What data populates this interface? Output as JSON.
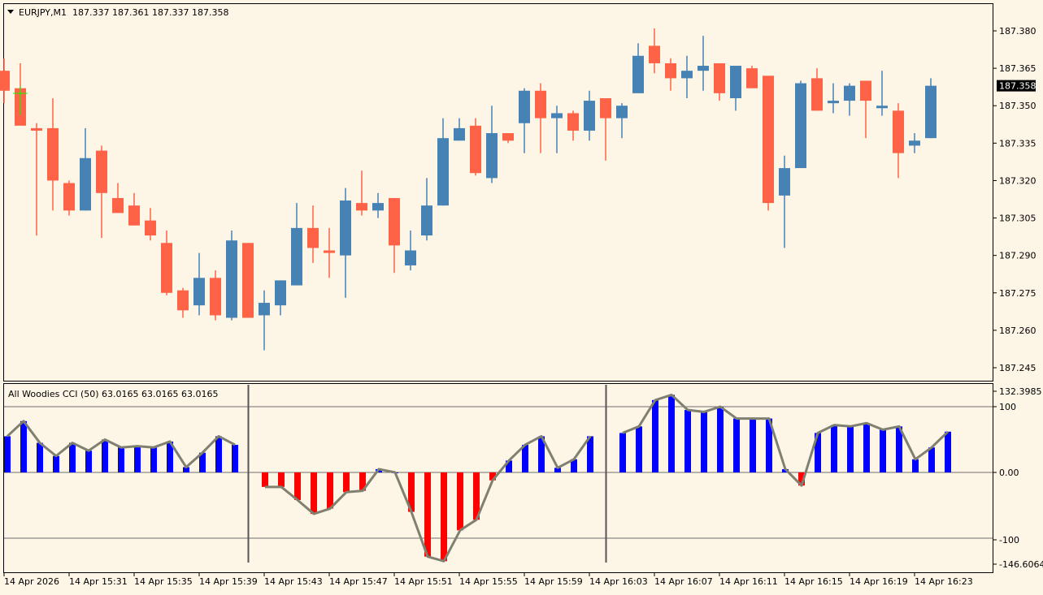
{
  "main": {
    "header": {
      "symbol": "EURJPY,M1",
      "ohlc": "187.337 187.361 187.337 187.358"
    },
    "current_price": "187.358",
    "price_axis": [
      "187.380",
      "187.365",
      "187.350",
      "187.335",
      "187.320",
      "187.305",
      "187.290",
      "187.275",
      "187.260",
      "187.245"
    ]
  },
  "indicator": {
    "header": "All Woodies CCI (50) 63.0165 63.0165 63.0165",
    "axis": [
      "132.3985",
      "100",
      "0.00",
      "-100",
      "-146.6064"
    ]
  },
  "time_axis": [
    "14 Apr 2026",
    "14 Apr 15:31",
    "14 Apr 15:35",
    "14 Apr 15:39",
    "14 Apr 15:43",
    "14 Apr 15:47",
    "14 Apr 15:51",
    "14 Apr 15:55",
    "14 Apr 15:59",
    "14 Apr 16:03",
    "14 Apr 16:07",
    "14 Apr 16:11",
    "14 Apr 16:15",
    "14 Apr 16:19",
    "14 Apr 16:23"
  ],
  "colors": {
    "background": "#fdf5e6",
    "bull": "#4682b4",
    "bear": "#ff6347",
    "cci_positive": "#0000ff",
    "cci_negative": "#ff0000",
    "cci_line": "#808070",
    "crosshair": "#00ff00"
  },
  "chart_data": [
    {
      "type": "candlestick",
      "title": "EURJPY,M1",
      "ylim": [
        187.24,
        187.385
      ],
      "candles": [
        {
          "o": 187.364,
          "h": 187.369,
          "l": 187.351,
          "c": 187.356
        },
        {
          "o": 187.357,
          "h": 187.367,
          "l": 187.342,
          "c": 187.342
        },
        {
          "o": 187.341,
          "h": 187.343,
          "l": 187.298,
          "c": 187.34
        },
        {
          "o": 187.341,
          "h": 187.353,
          "l": 187.308,
          "c": 187.32
        },
        {
          "o": 187.319,
          "h": 187.32,
          "l": 187.306,
          "c": 187.308
        },
        {
          "o": 187.308,
          "h": 187.341,
          "l": 187.308,
          "c": 187.329
        },
        {
          "o": 187.332,
          "h": 187.334,
          "l": 187.297,
          "c": 187.315
        },
        {
          "o": 187.313,
          "h": 187.319,
          "l": 187.307,
          "c": 187.307
        },
        {
          "o": 187.31,
          "h": 187.315,
          "l": 187.302,
          "c": 187.302
        },
        {
          "o": 187.304,
          "h": 187.309,
          "l": 187.296,
          "c": 187.298
        },
        {
          "o": 187.295,
          "h": 187.3,
          "l": 187.274,
          "c": 187.275
        },
        {
          "o": 187.276,
          "h": 187.277,
          "l": 187.265,
          "c": 187.268
        },
        {
          "o": 187.27,
          "h": 187.291,
          "l": 187.266,
          "c": 187.281
        },
        {
          "o": 187.281,
          "h": 187.284,
          "l": 187.264,
          "c": 187.266
        },
        {
          "o": 187.265,
          "h": 187.3,
          "l": 187.264,
          "c": 187.296
        },
        {
          "o": 187.295,
          "h": 187.295,
          "l": 187.265,
          "c": 187.265
        },
        {
          "o": 187.266,
          "h": 187.276,
          "l": 187.252,
          "c": 187.271
        },
        {
          "o": 187.27,
          "h": 187.28,
          "l": 187.266,
          "c": 187.28
        },
        {
          "o": 187.278,
          "h": 187.311,
          "l": 187.278,
          "c": 187.301
        },
        {
          "o": 187.301,
          "h": 187.31,
          "l": 187.287,
          "c": 187.293
        },
        {
          "o": 187.292,
          "h": 187.301,
          "l": 187.281,
          "c": 187.291
        },
        {
          "o": 187.29,
          "h": 187.317,
          "l": 187.273,
          "c": 187.312
        },
        {
          "o": 187.311,
          "h": 187.324,
          "l": 187.306,
          "c": 187.308
        },
        {
          "o": 187.308,
          "h": 187.315,
          "l": 187.305,
          "c": 187.311
        },
        {
          "o": 187.313,
          "h": 187.313,
          "l": 187.283,
          "c": 187.294
        },
        {
          "o": 187.286,
          "h": 187.3,
          "l": 187.284,
          "c": 187.292
        },
        {
          "o": 187.298,
          "h": 187.321,
          "l": 187.296,
          "c": 187.31
        },
        {
          "o": 187.31,
          "h": 187.345,
          "l": 187.31,
          "c": 187.337
        },
        {
          "o": 187.336,
          "h": 187.345,
          "l": 187.336,
          "c": 187.341
        },
        {
          "o": 187.342,
          "h": 187.345,
          "l": 187.322,
          "c": 187.323
        },
        {
          "o": 187.321,
          "h": 187.35,
          "l": 187.319,
          "c": 187.339
        },
        {
          "o": 187.339,
          "h": 187.339,
          "l": 187.335,
          "c": 187.336
        },
        {
          "o": 187.343,
          "h": 187.357,
          "l": 187.331,
          "c": 187.356
        },
        {
          "o": 187.356,
          "h": 187.359,
          "l": 187.331,
          "c": 187.345
        },
        {
          "o": 187.345,
          "h": 187.35,
          "l": 187.331,
          "c": 187.347
        },
        {
          "o": 187.347,
          "h": 187.348,
          "l": 187.336,
          "c": 187.34
        },
        {
          "o": 187.34,
          "h": 187.356,
          "l": 187.336,
          "c": 187.352
        },
        {
          "o": 187.353,
          "h": 187.353,
          "l": 187.328,
          "c": 187.345
        },
        {
          "o": 187.345,
          "h": 187.351,
          "l": 187.337,
          "c": 187.35
        },
        {
          "o": 187.355,
          "h": 187.375,
          "l": 187.355,
          "c": 187.37
        },
        {
          "o": 187.374,
          "h": 187.381,
          "l": 187.363,
          "c": 187.367
        },
        {
          "o": 187.367,
          "h": 187.369,
          "l": 187.356,
          "c": 187.361
        },
        {
          "o": 187.361,
          "h": 187.37,
          "l": 187.353,
          "c": 187.364
        },
        {
          "o": 187.364,
          "h": 187.378,
          "l": 187.356,
          "c": 187.366
        },
        {
          "o": 187.367,
          "h": 187.367,
          "l": 187.352,
          "c": 187.355
        },
        {
          "o": 187.353,
          "h": 187.366,
          "l": 187.348,
          "c": 187.366
        },
        {
          "o": 187.365,
          "h": 187.366,
          "l": 187.357,
          "c": 187.357
        },
        {
          "o": 187.362,
          "h": 187.362,
          "l": 187.308,
          "c": 187.311
        },
        {
          "o": 187.314,
          "h": 187.33,
          "l": 187.293,
          "c": 187.325
        },
        {
          "o": 187.325,
          "h": 187.36,
          "l": 187.325,
          "c": 187.359
        },
        {
          "o": 187.361,
          "h": 187.365,
          "l": 187.348,
          "c": 187.348
        },
        {
          "o": 187.351,
          "h": 187.359,
          "l": 187.347,
          "c": 187.352
        },
        {
          "o": 187.352,
          "h": 187.359,
          "l": 187.346,
          "c": 187.358
        },
        {
          "o": 187.36,
          "h": 187.36,
          "l": 187.337,
          "c": 187.352
        },
        {
          "o": 187.349,
          "h": 187.364,
          "l": 187.346,
          "c": 187.35
        },
        {
          "o": 187.348,
          "h": 187.351,
          "l": 187.321,
          "c": 187.331
        },
        {
          "o": 187.334,
          "h": 187.339,
          "l": 187.331,
          "c": 187.336
        },
        {
          "o": 187.337,
          "h": 187.361,
          "l": 187.337,
          "c": 187.358
        }
      ]
    },
    {
      "type": "bar",
      "title": "All Woodies CCI (50)",
      "ylim": [
        -146.6064,
        132.3985
      ],
      "segments": [
        [
          55,
          78,
          45,
          25,
          45,
          33,
          50,
          38,
          40,
          38,
          47,
          8,
          30,
          55,
          42
        ],
        [
          -22,
          -22,
          -42,
          -63,
          -55,
          -30,
          -28,
          5,
          0,
          -60,
          -128,
          -135,
          -88,
          -72,
          -12,
          18,
          42,
          55,
          7,
          20,
          55
        ],
        [
          60,
          70,
          110,
          118,
          95,
          92,
          100,
          82,
          82,
          82,
          5,
          -20,
          60,
          72,
          70,
          75,
          65,
          70,
          20,
          38,
          62
        ]
      ],
      "line": [
        [
          55,
          78,
          45,
          25,
          45,
          33,
          50,
          38,
          40,
          38,
          47,
          8,
          30,
          55,
          42
        ],
        [
          -22,
          -22,
          -42,
          -63,
          -55,
          -30,
          -28,
          5,
          0,
          -60,
          -128,
          -135,
          -88,
          -72,
          -12,
          18,
          42,
          55,
          7,
          20,
          55
        ],
        [
          60,
          70,
          110,
          118,
          95,
          92,
          100,
          82,
          82,
          82,
          5,
          -20,
          60,
          72,
          70,
          75,
          65,
          70,
          20,
          38,
          62
        ]
      ],
      "levels": [
        100,
        0,
        -100
      ]
    }
  ]
}
